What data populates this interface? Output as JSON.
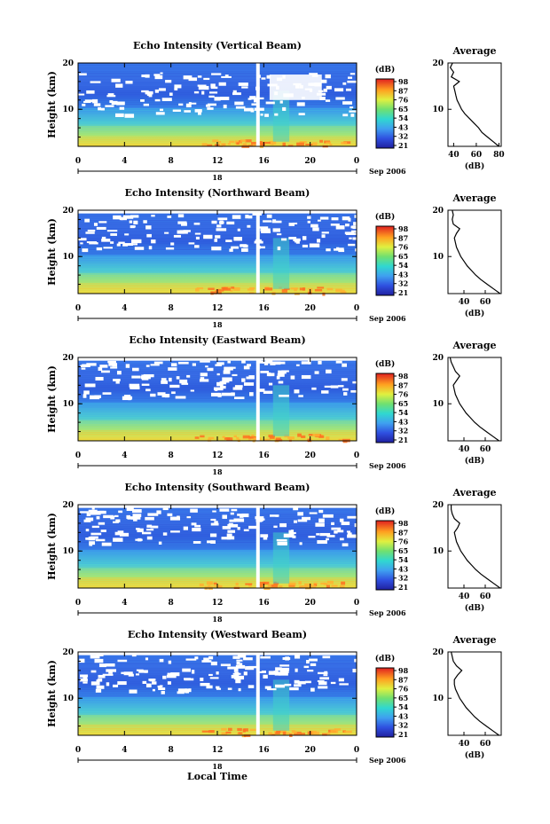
{
  "chart_data": {
    "type": "heatmap",
    "xlabel": "Local Time",
    "date_label": "Sep 2006",
    "day_label": "18",
    "x_ticks": [
      "0",
      "4",
      "8",
      "12",
      "16",
      "20",
      "0"
    ],
    "x_range": [
      0,
      24
    ],
    "ylabel": "Height (km)",
    "y_ticks": [
      "10",
      "20"
    ],
    "y_range": [
      2,
      20
    ],
    "colorbar_unit": "(dB)",
    "colorbar_ticks": [
      "98",
      "87",
      "76",
      "65",
      "54",
      "43",
      "32",
      "21"
    ],
    "colorbar_range": [
      21,
      98
    ],
    "profile_title": "Average",
    "profile_xlabel": "(dB)",
    "data_gap_time": 15.5,
    "panels": [
      {
        "title": "Echo Intensity (Vertical Beam)",
        "profile_xticks": [
          "40",
          "60",
          "80"
        ],
        "profile_xrange": [
          35,
          82
        ],
        "profile_height": [
          2,
          3,
          4,
          5,
          6,
          7,
          8,
          9,
          10,
          11,
          12,
          13,
          14,
          15,
          16,
          17,
          18,
          19,
          20
        ],
        "profile_db": [
          80,
          75,
          70,
          65,
          62,
          58,
          54,
          50,
          47,
          45,
          43,
          42,
          41,
          40,
          45,
          38,
          40,
          37,
          39
        ]
      },
      {
        "title": "Echo Intensity (Northward Beam)",
        "profile_xticks": [
          "40",
          "60"
        ],
        "profile_xrange": [
          25,
          75
        ],
        "profile_height": [
          2,
          3,
          4,
          5,
          6,
          7,
          8,
          9,
          10,
          11,
          12,
          13,
          14,
          15,
          16,
          17,
          18,
          19,
          20
        ],
        "profile_db": [
          74,
          68,
          62,
          56,
          51,
          47,
          43,
          40,
          37,
          35,
          33,
          32,
          31,
          33,
          36,
          30,
          29,
          30,
          29
        ]
      },
      {
        "title": "Echo Intensity (Eastward Beam)",
        "profile_xticks": [
          "40",
          "60"
        ],
        "profile_xrange": [
          25,
          75
        ],
        "profile_height": [
          2,
          3,
          4,
          5,
          6,
          7,
          8,
          9,
          10,
          11,
          12,
          13,
          14,
          15,
          16,
          17,
          18,
          19,
          20
        ],
        "profile_db": [
          73,
          67,
          61,
          55,
          50,
          46,
          42,
          39,
          36,
          34,
          32,
          31,
          30,
          33,
          36,
          32,
          30,
          28,
          27
        ]
      },
      {
        "title": "Echo Intensity (Southward Beam)",
        "profile_xticks": [
          "40",
          "60"
        ],
        "profile_xrange": [
          25,
          75
        ],
        "profile_height": [
          2,
          3,
          4,
          5,
          6,
          7,
          8,
          9,
          10,
          11,
          12,
          13,
          14,
          15,
          16,
          17,
          18,
          19,
          20
        ],
        "profile_db": [
          74,
          68,
          62,
          56,
          51,
          47,
          43,
          40,
          37,
          35,
          33,
          32,
          31,
          34,
          36,
          31,
          29,
          28,
          28
        ]
      },
      {
        "title": "Echo Intensity (Westward Beam)",
        "profile_xticks": [
          "40",
          "60"
        ],
        "profile_xrange": [
          25,
          75
        ],
        "profile_height": [
          2,
          3,
          4,
          5,
          6,
          7,
          8,
          9,
          10,
          11,
          12,
          13,
          14,
          15,
          16,
          17,
          18,
          19,
          20
        ],
        "profile_db": [
          73,
          67,
          61,
          55,
          50,
          46,
          42,
          39,
          36,
          34,
          32,
          31,
          31,
          34,
          38,
          33,
          30,
          29,
          28
        ]
      }
    ]
  }
}
